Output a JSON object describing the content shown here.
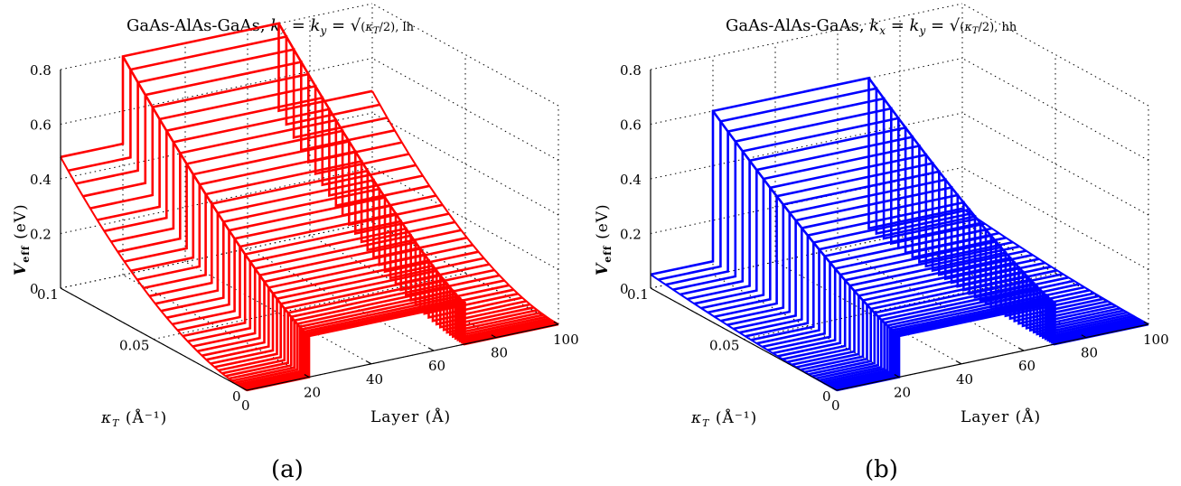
{
  "chart_data": [
    {
      "type": "3d-line",
      "panel_label": "(a)",
      "title_text": "GaAs-AlAs-GaAs, ",
      "title_math": "kx = ky = √(κT/2), lh",
      "color": "#ff0000",
      "zlabel": "V_eff (eV)",
      "zlabel_main": "V",
      "zlabel_sub": "eff",
      "zlabel_unit": "(eV)",
      "xlabel": "Layer (Å)",
      "ylabel": "κ_T (Å⁻¹)",
      "ylabel_sym": "κ",
      "ylabel_sub": "T",
      "ylabel_unit": "(Å⁻¹)",
      "xlim": [
        0,
        100
      ],
      "ylim": [
        0,
        0.1
      ],
      "zlim": [
        0,
        0.8
      ],
      "x_ticks": [
        "0",
        "20",
        "40",
        "60",
        "80",
        "100"
      ],
      "y_ticks": [
        "0",
        "0.05",
        "0.1"
      ],
      "z_ticks": [
        "0",
        "0.2",
        "0.4",
        "0.6",
        "0.8"
      ],
      "barrier": [
        20,
        70
      ],
      "barrier_height_at_kT0": 0.15,
      "barrier_height_at_kT_max": 0.8,
      "outer_value_at_kT_max": 0.48,
      "num_kT_slices": 40
    },
    {
      "type": "3d-line",
      "panel_label": "(b)",
      "title_text": "GaAs-AlAs-GaAs, ",
      "title_math": "kx = ky = √(κT/2), hh",
      "color": "#0000ff",
      "zlabel": "V_eff (eV)",
      "zlabel_main": "V",
      "zlabel_sub": "eff",
      "zlabel_unit": "(eV)",
      "xlabel": "Layer (Å)",
      "ylabel": "κ_T (Å⁻¹)",
      "ylabel_sym": "κ",
      "ylabel_sub": "T",
      "ylabel_unit": "(Å⁻¹)",
      "xlim": [
        0,
        100
      ],
      "ylim": [
        0,
        0.1
      ],
      "zlim": [
        0,
        0.8
      ],
      "x_ticks": [
        "0",
        "20",
        "40",
        "60",
        "80",
        "100"
      ],
      "y_ticks": [
        "0",
        "0.05",
        "0.1"
      ],
      "z_ticks": [
        "0",
        "0.2",
        "0.4",
        "0.6",
        "0.8"
      ],
      "barrier": [
        20,
        70
      ],
      "barrier_height_at_kT0": 0.15,
      "barrier_height_at_kT_max": 0.6,
      "outer_value_at_kT_max": 0.05,
      "num_kT_slices": 40
    }
  ]
}
